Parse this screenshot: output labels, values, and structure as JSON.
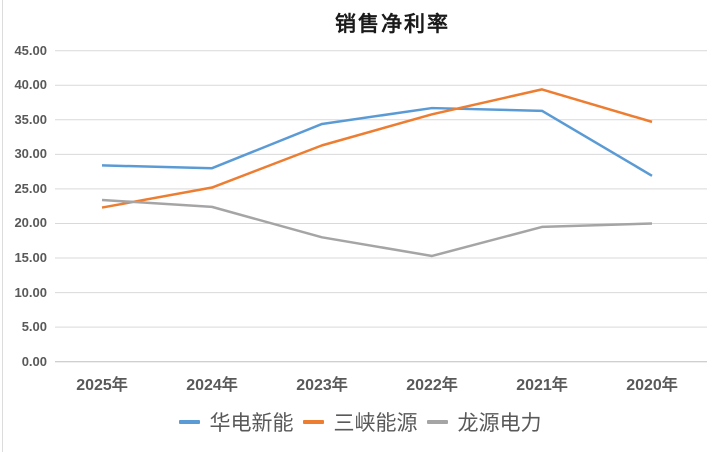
{
  "chart_data": {
    "type": "line",
    "title": "销售净利率",
    "categories": [
      "2025年",
      "2024年",
      "2023年",
      "2022年",
      "2021年",
      "2020年"
    ],
    "series": [
      {
        "name": "华电新能",
        "color": "#5B9BD5",
        "values": [
          28.4,
          28.0,
          34.4,
          36.7,
          36.3,
          26.9
        ]
      },
      {
        "name": "三峡能源",
        "color": "#ED7D31",
        "values": [
          22.3,
          25.2,
          31.3,
          35.8,
          39.4,
          34.7
        ]
      },
      {
        "name": "龙源电力",
        "color": "#A5A5A5",
        "values": [
          23.4,
          22.4,
          18.0,
          15.3,
          19.5,
          20.0
        ]
      }
    ],
    "ylim": [
      0,
      45
    ],
    "ytick_step": 5,
    "ytick_labels": [
      "0.00",
      "5.00",
      "10.00",
      "15.00",
      "20.00",
      "25.00",
      "30.00",
      "35.00",
      "40.00",
      "45.00"
    ],
    "grid": true,
    "legend_position": "bottom"
  },
  "colors": {
    "gridline": "#d9d9d9",
    "axis_line": "#bfbfbf",
    "label_text": "#595959",
    "title_text": "#1a1a1a"
  }
}
